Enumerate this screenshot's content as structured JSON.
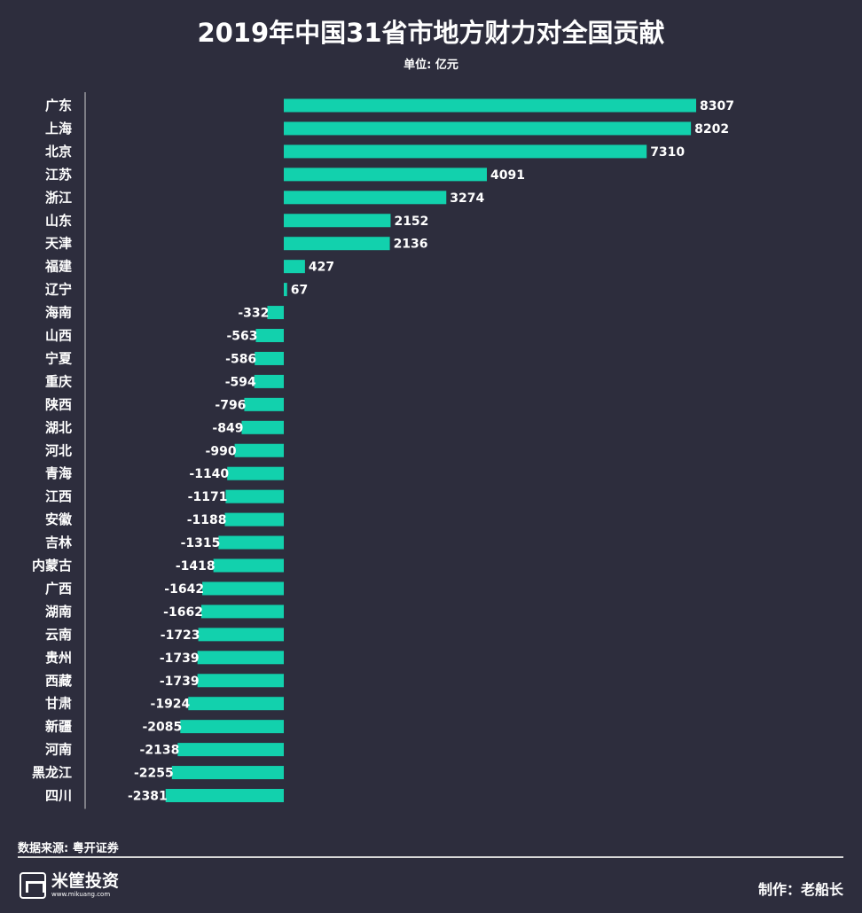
{
  "title": "2019年中国31省市地方财力对全国贡献",
  "unit": "单位: 亿元",
  "source": "数据来源: 粤开证券",
  "credit": "制作：老船长",
  "logo": {
    "name": "米筐投资",
    "url": "www.mikuang.com",
    "icon": "mikuang-logo-icon"
  },
  "colors": {
    "background": "#2d2d3d",
    "bar": "#12d1ad",
    "text": "#ffffff"
  },
  "chart_data": {
    "type": "bar",
    "orientation": "horizontal",
    "title": "2019年中国31省市地方财力对全国贡献",
    "unit": "亿元",
    "categories": [
      "广东",
      "上海",
      "北京",
      "江苏",
      "浙江",
      "山东",
      "天津",
      "福建",
      "辽宁",
      "海南",
      "山西",
      "宁夏",
      "重庆",
      "陕西",
      "湖北",
      "河北",
      "青海",
      "江西",
      "安徽",
      "吉林",
      "内蒙古",
      "广西",
      "湖南",
      "云南",
      "贵州",
      "西藏",
      "甘肃",
      "新疆",
      "河南",
      "黑龙江",
      "四川"
    ],
    "values": [
      8307,
      8202,
      7310,
      4091,
      3274,
      2152,
      2136,
      427,
      67,
      -332,
      -563,
      -586,
      -594,
      -796,
      -849,
      -990,
      -1140,
      -1171,
      -1188,
      -1315,
      -1418,
      -1642,
      -1662,
      -1723,
      -1739,
      -1739,
      -1924,
      -2085,
      -2138,
      -2255,
      -2381
    ],
    "data_labels": true,
    "xlim": [
      -2381,
      8307
    ],
    "grid": false,
    "legend": "none"
  }
}
